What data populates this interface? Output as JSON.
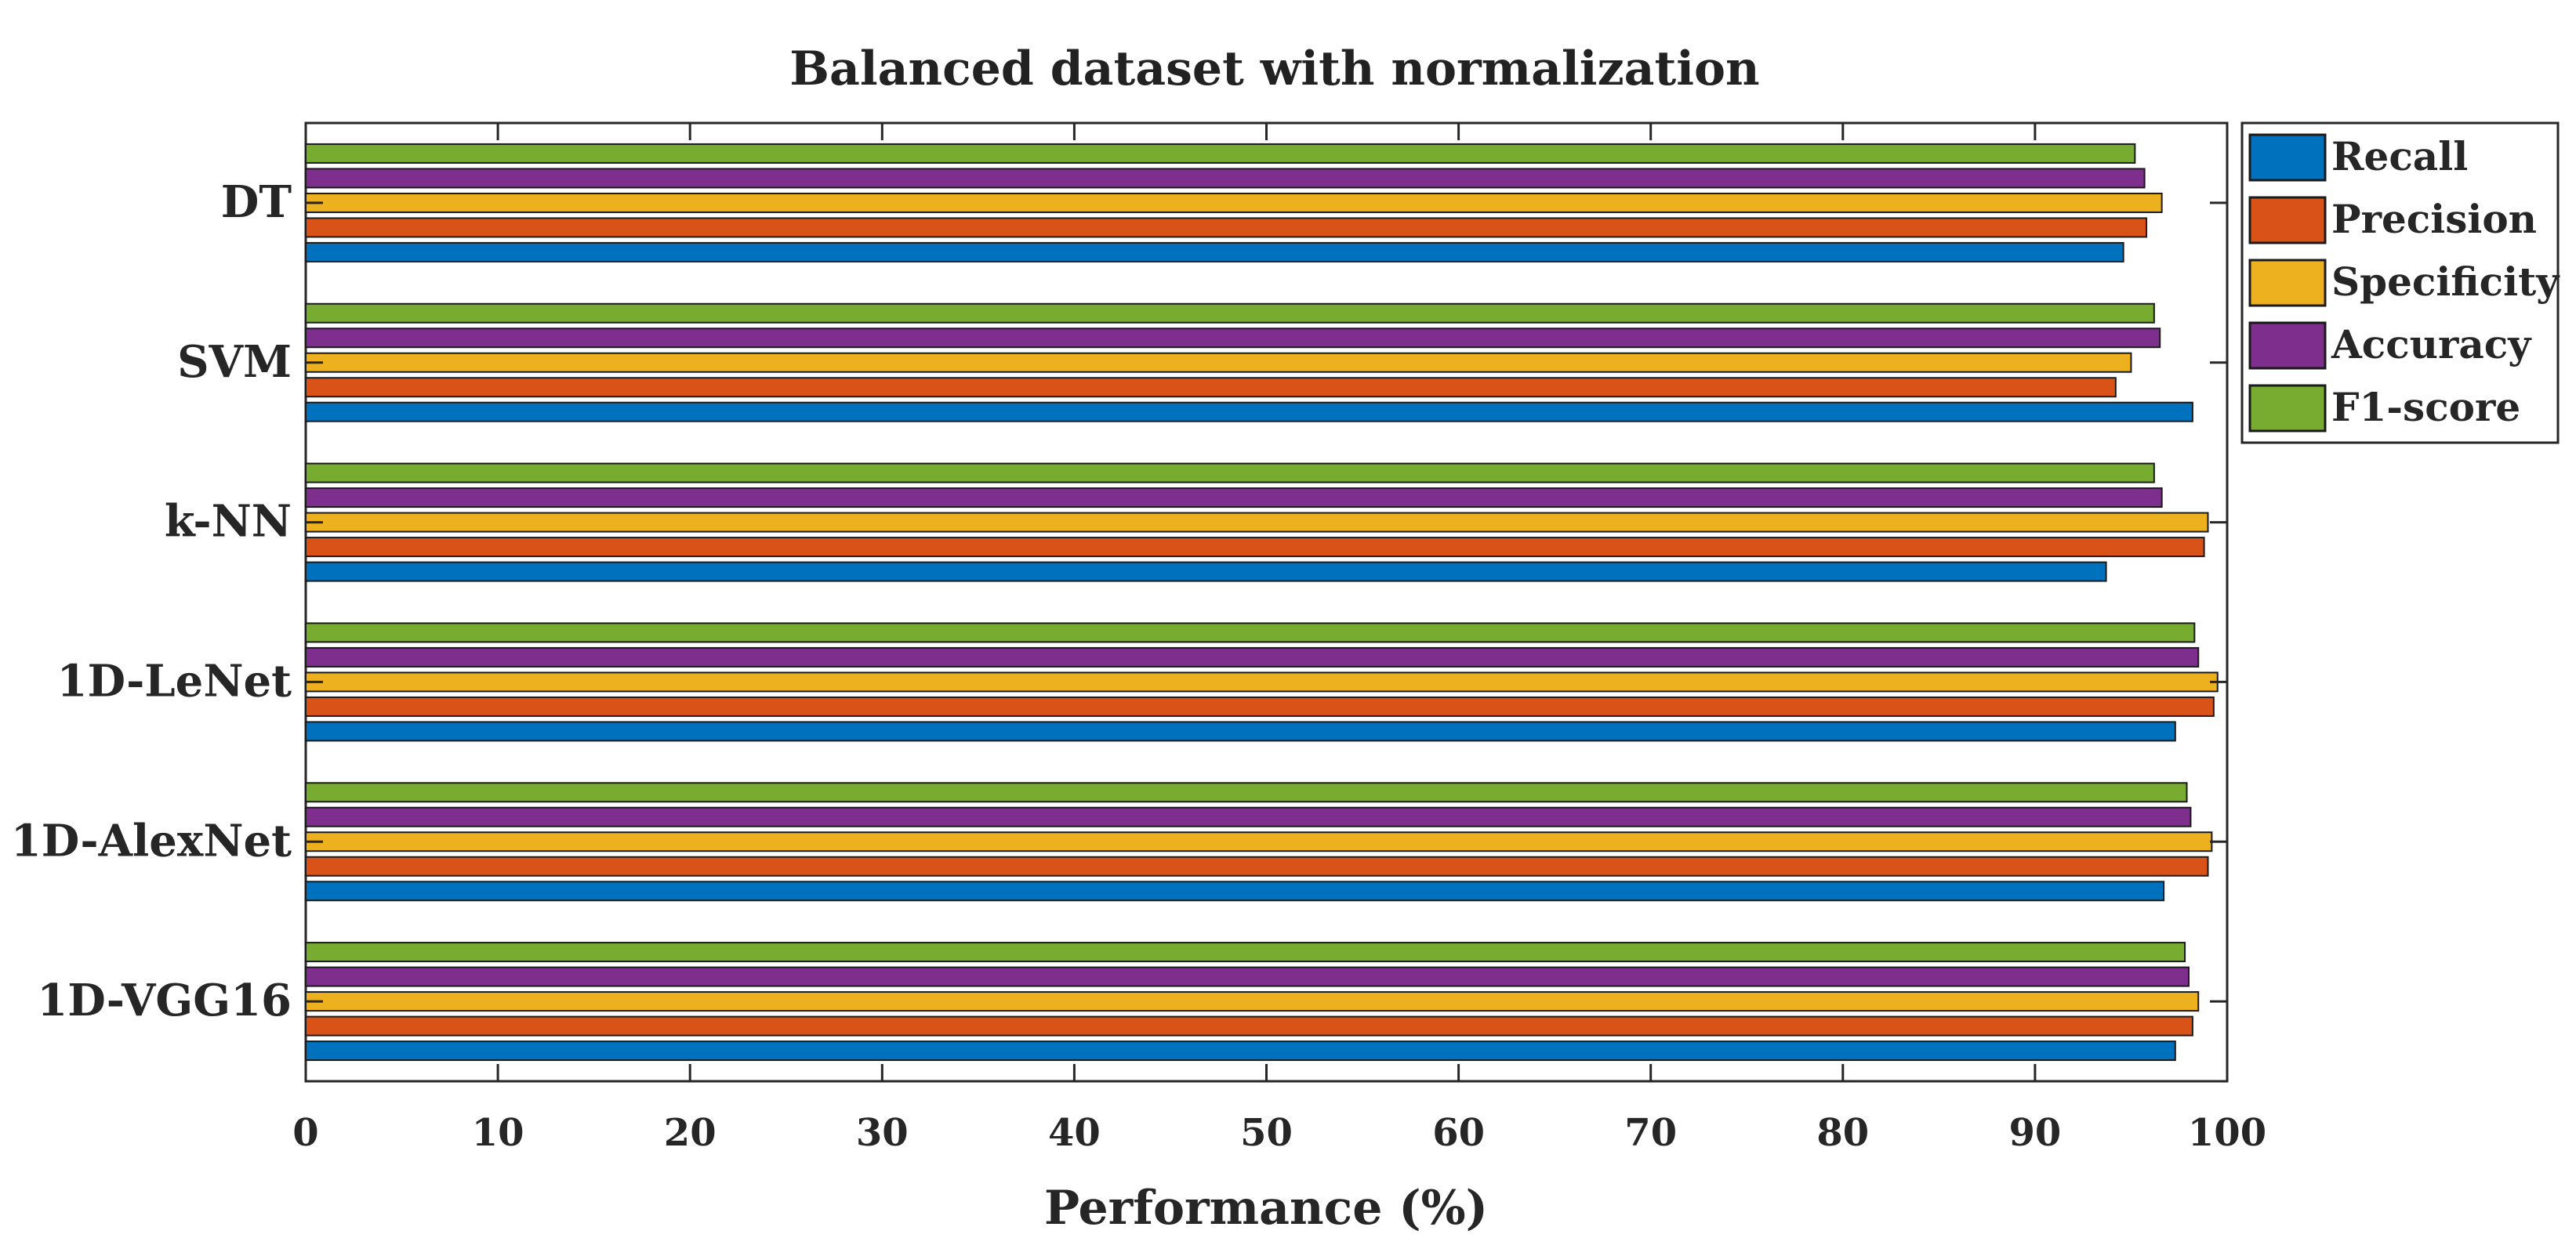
{
  "chart_data": {
    "type": "bar",
    "orientation": "horizontal",
    "title": "Balanced dataset with normalization",
    "xlabel": "Performance (%)",
    "ylabel": "",
    "xlim": [
      0,
      100
    ],
    "x_ticks": [
      "0",
      "10",
      "20",
      "30",
      "40",
      "50",
      "60",
      "70",
      "80",
      "90",
      "100"
    ],
    "grid": false,
    "legend_position": "top-right",
    "categories": [
      "DT",
      "SVM",
      "k-NN",
      "1D-LeNet",
      "1D-AlexNet",
      "1D-VGG16"
    ],
    "series": [
      {
        "name": "Recall",
        "color": "#0072BD",
        "values": [
          94.6,
          98.2,
          93.7,
          97.3,
          96.7,
          97.3
        ]
      },
      {
        "name": "Precision",
        "color": "#D95319",
        "values": [
          95.8,
          94.2,
          98.8,
          99.3,
          99.0,
          98.2
        ]
      },
      {
        "name": "Specificity",
        "color": "#EDB120",
        "values": [
          96.6,
          95.0,
          99.0,
          99.5,
          99.2,
          98.5
        ]
      },
      {
        "name": "Accuracy",
        "color": "#7E2F8E",
        "values": [
          95.7,
          96.5,
          96.6,
          98.5,
          98.1,
          98.0
        ]
      },
      {
        "name": "F1-score",
        "color": "#77AC30",
        "values": [
          95.2,
          96.2,
          96.2,
          98.3,
          97.9,
          97.8
        ]
      }
    ]
  }
}
